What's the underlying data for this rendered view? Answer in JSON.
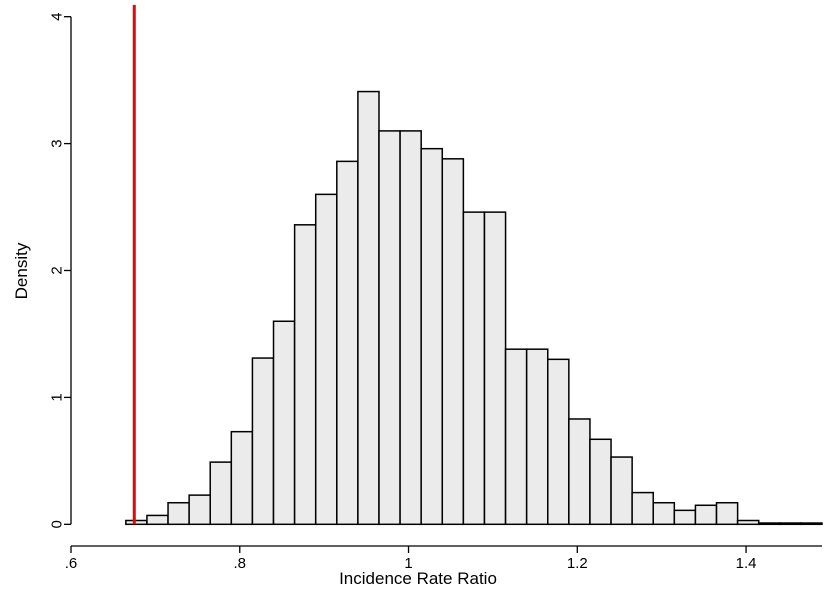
{
  "chart_data": {
    "type": "bar",
    "title": "",
    "xlabel": "Incidence Rate Ratio",
    "ylabel": "Density",
    "xlim": [
      0.6,
      1.49
    ],
    "ylim": [
      -0.1,
      4.1
    ],
    "xticks": [
      0.6,
      0.8,
      1,
      1.2,
      1.4
    ],
    "xtick_labels": [
      ".6",
      ".8",
      "1",
      "1.2",
      "1.4"
    ],
    "yticks": [
      0,
      1,
      2,
      3,
      4
    ],
    "ytick_labels": [
      "0",
      "1",
      "2",
      "3",
      "4"
    ],
    "grid": false,
    "bin_edges": [
      0.665,
      0.69,
      0.715,
      0.74,
      0.765,
      0.79,
      0.815,
      0.84,
      0.865,
      0.89,
      0.915,
      0.94,
      0.965,
      0.99,
      1.015,
      1.04,
      1.065,
      1.09,
      1.115,
      1.14,
      1.165,
      1.19,
      1.215,
      1.24,
      1.265,
      1.29,
      1.315,
      1.34,
      1.365,
      1.39,
      1.415,
      1.44,
      1.465,
      1.49
    ],
    "values": [
      0.03,
      0.07,
      0.17,
      0.23,
      0.49,
      0.73,
      1.31,
      1.6,
      2.36,
      2.6,
      2.86,
      3.41,
      3.1,
      3.1,
      2.96,
      2.88,
      2.46,
      2.46,
      1.38,
      1.38,
      1.3,
      0.83,
      0.67,
      0.53,
      0.25,
      0.17,
      0.11,
      0.15,
      0.17,
      0.03,
      0.01,
      0.01,
      0.01
    ],
    "reference_line": {
      "x": 0.675,
      "color": "#d01010"
    },
    "bar_fill": "#ebebeb",
    "bar_edge": "#000000"
  }
}
